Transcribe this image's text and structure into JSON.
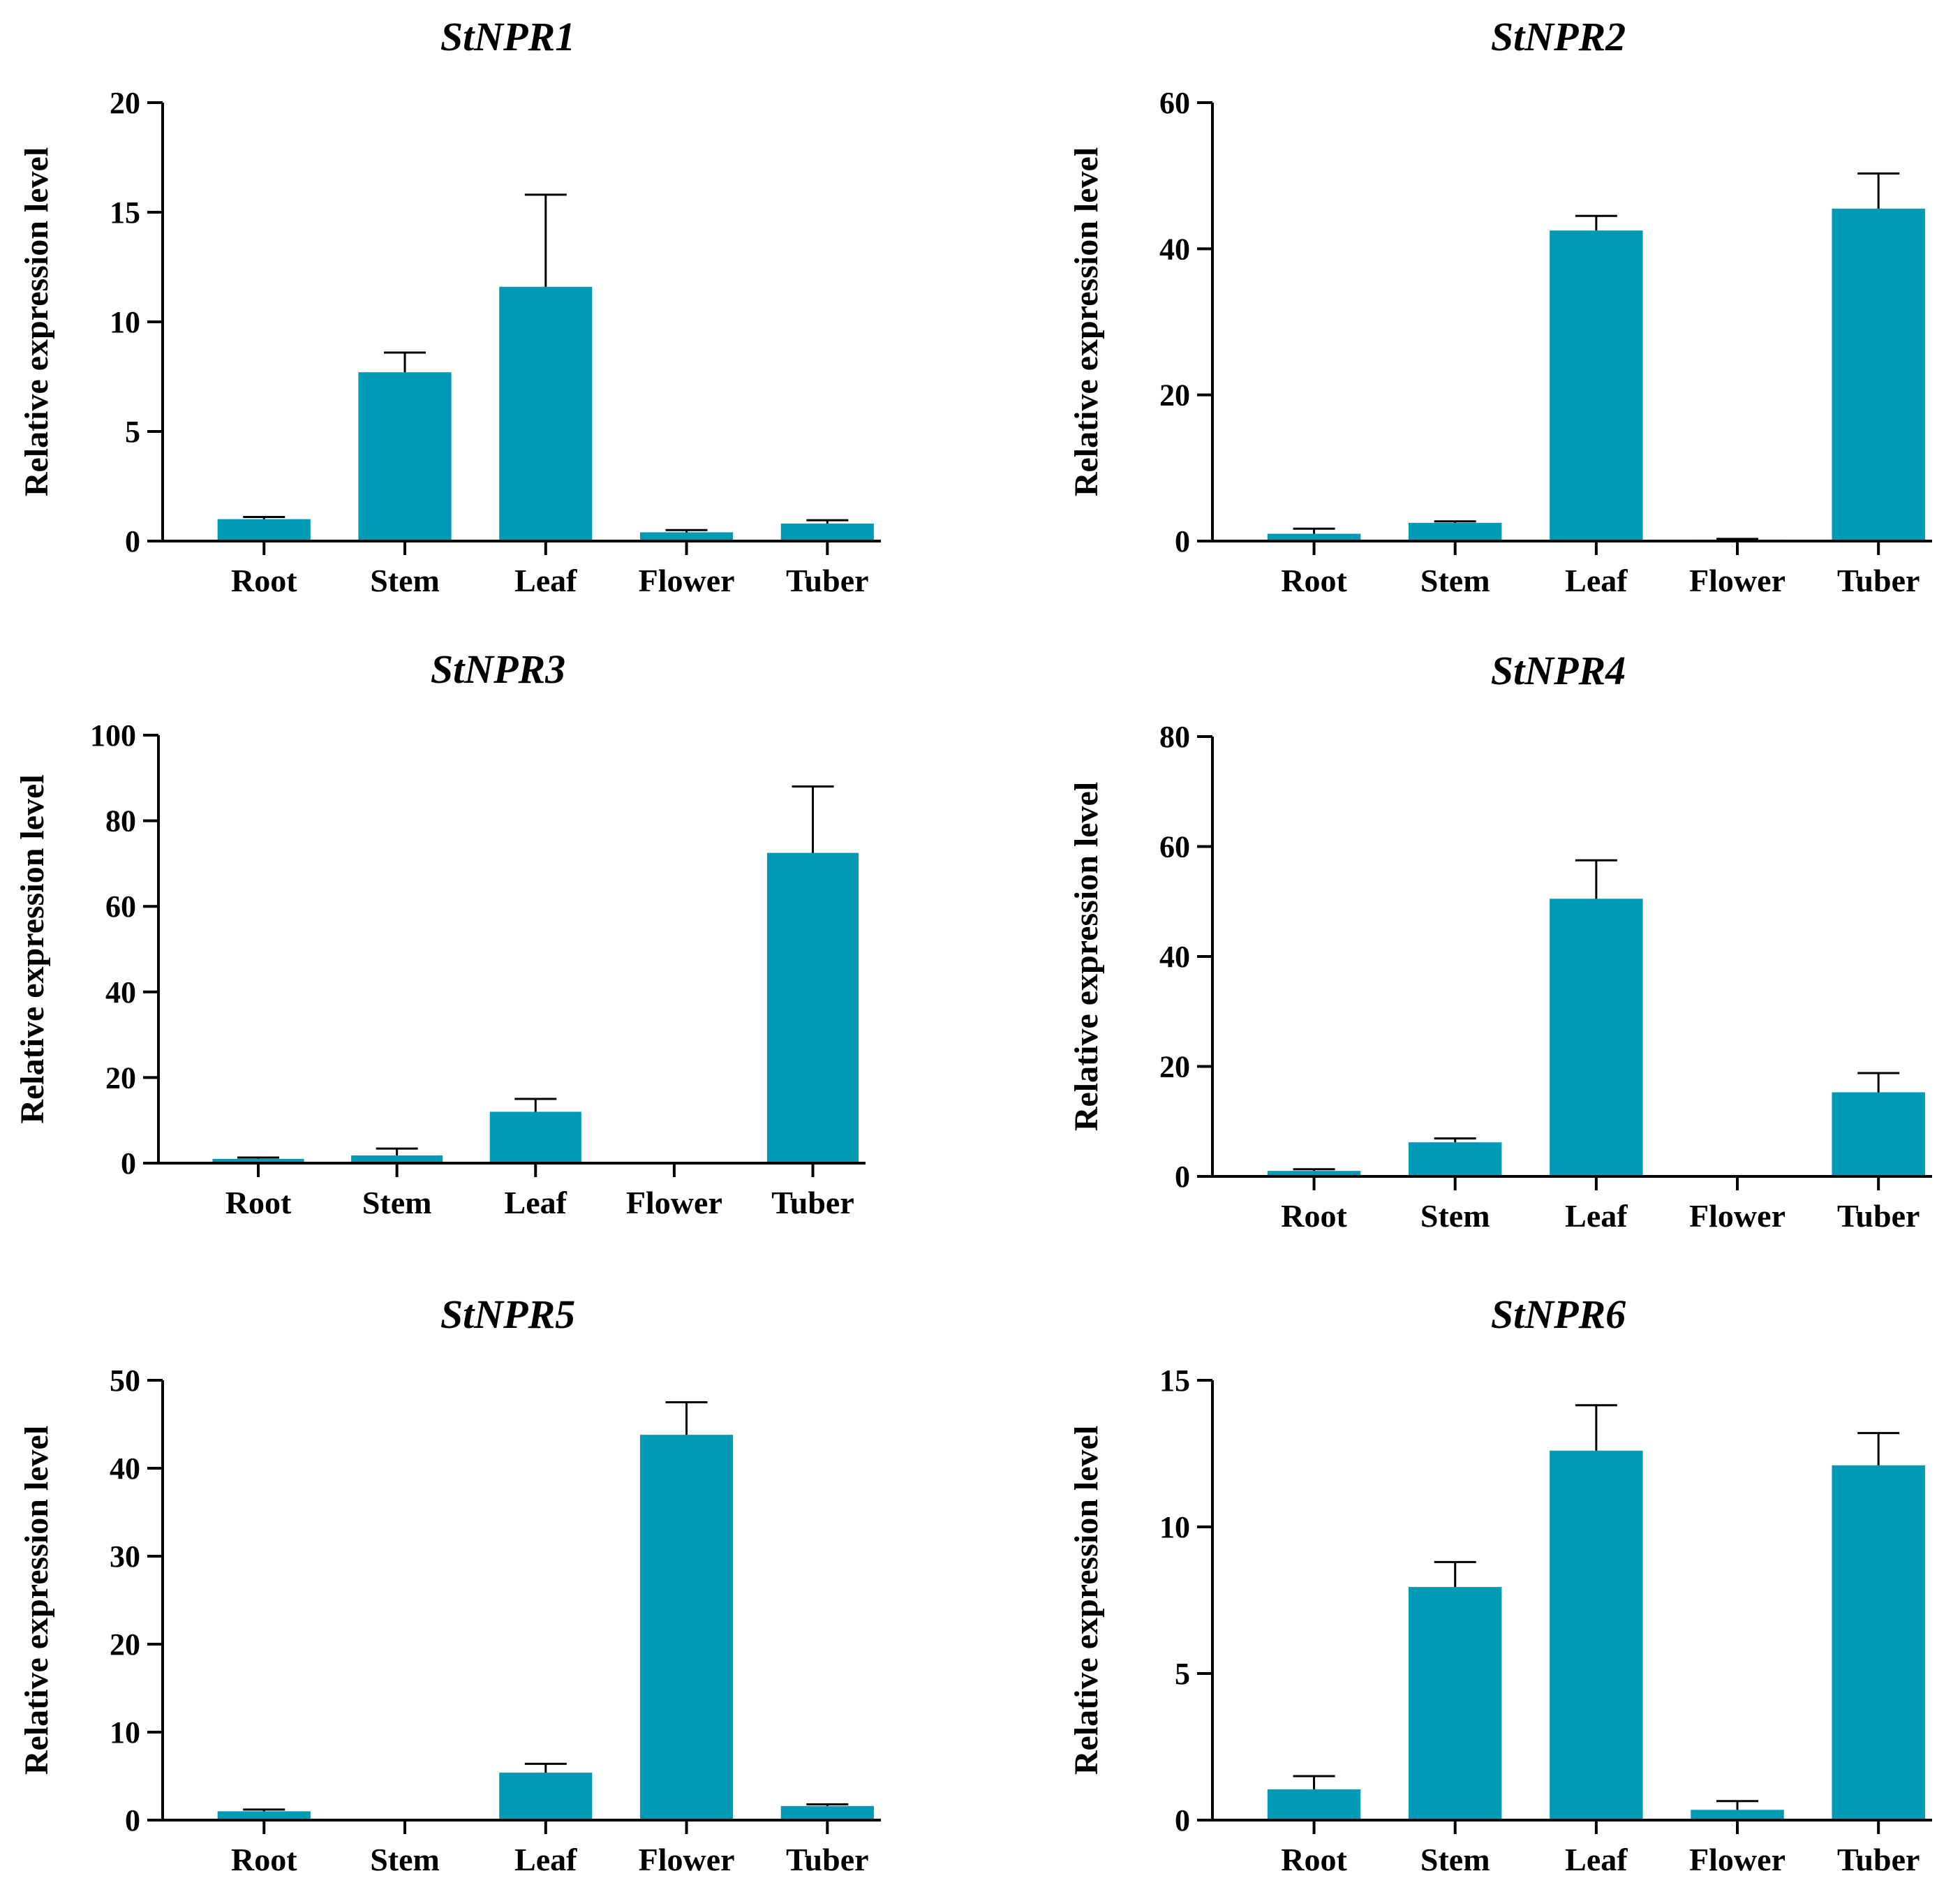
{
  "figure": {
    "bar_color": "#009ab5",
    "axis_color": "#000000"
  },
  "chart_data": [
    {
      "type": "bar",
      "title": "StNPR1",
      "ylabel": "Relative expression level",
      "xlabel": "",
      "categories": [
        "Root",
        "Stem",
        "Leaf",
        "Flower",
        "Tuber"
      ],
      "values": [
        1.0,
        7.7,
        11.6,
        0.4,
        0.8
      ],
      "errors": [
        0.1,
        0.9,
        4.2,
        0.1,
        0.15
      ],
      "ylim": [
        0,
        20
      ],
      "yticks": [
        0,
        5,
        10,
        15,
        20
      ]
    },
    {
      "type": "bar",
      "title": "StNPR2",
      "ylabel": "Relative expression level",
      "xlabel": "",
      "categories": [
        "Root",
        "Stem",
        "Leaf",
        "Flower",
        "Tuber"
      ],
      "values": [
        1.0,
        2.5,
        42.5,
        0.2,
        45.5
      ],
      "errors": [
        0.7,
        0.2,
        2.0,
        0.1,
        4.8
      ],
      "ylim": [
        0,
        60
      ],
      "yticks": [
        0,
        20,
        40,
        60
      ]
    },
    {
      "type": "bar",
      "title": "StNPR3",
      "ylabel": "Relative expression level",
      "xlabel": "",
      "categories": [
        "Root",
        "Stem",
        "Leaf",
        "Flower",
        "Tuber"
      ],
      "values": [
        1.0,
        1.8,
        12.0,
        0.0,
        72.5
      ],
      "errors": [
        0.3,
        1.6,
        3.0,
        0.0,
        15.5
      ],
      "ylim": [
        0,
        100
      ],
      "yticks": [
        0,
        20,
        40,
        60,
        80,
        100
      ]
    },
    {
      "type": "bar",
      "title": "StNPR4",
      "ylabel": "Relative expression level",
      "xlabel": "",
      "categories": [
        "Root",
        "Stem",
        "Leaf",
        "Flower",
        "Tuber"
      ],
      "values": [
        1.0,
        6.2,
        50.5,
        0.0,
        15.3
      ],
      "errors": [
        0.3,
        0.7,
        7.0,
        0.0,
        3.5
      ],
      "ylim": [
        0,
        80
      ],
      "yticks": [
        0,
        20,
        40,
        60,
        80
      ]
    },
    {
      "type": "bar",
      "title": "StNPR5",
      "ylabel": "Relative expression level",
      "xlabel": "",
      "categories": [
        "Root",
        "Stem",
        "Leaf",
        "Flower",
        "Tuber"
      ],
      "values": [
        1.0,
        0.0,
        5.4,
        43.8,
        1.6
      ],
      "errors": [
        0.2,
        0.0,
        1.0,
        3.7,
        0.2
      ],
      "ylim": [
        0,
        50
      ],
      "yticks": [
        0,
        10,
        20,
        30,
        40,
        50
      ]
    },
    {
      "type": "bar",
      "title": "StNPR6",
      "ylabel": "Relative expression level",
      "xlabel": "",
      "categories": [
        "Root",
        "Stem",
        "Leaf",
        "Flower",
        "Tuber"
      ],
      "values": [
        1.05,
        7.95,
        12.6,
        0.35,
        12.1
      ],
      "errors": [
        0.45,
        0.85,
        1.55,
        0.3,
        1.1
      ],
      "ylim": [
        0,
        15
      ],
      "yticks": [
        0,
        5,
        10,
        15
      ]
    }
  ]
}
